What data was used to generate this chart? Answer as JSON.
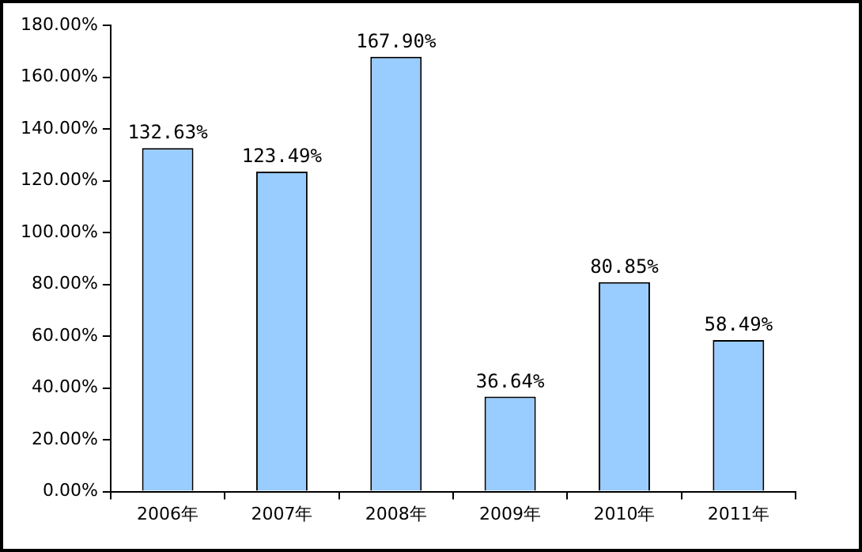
{
  "chart_data": {
    "type": "bar",
    "categories": [
      "2006年",
      "2007年",
      "2008年",
      "2009年",
      "2010年",
      "2011年"
    ],
    "values": [
      132.63,
      123.49,
      167.9,
      36.64,
      80.85,
      58.49
    ],
    "value_labels": [
      "132.63%",
      "123.49%",
      "167.90%",
      "36.64%",
      "80.85%",
      "58.49%"
    ],
    "color": "#99ccff",
    "ylim": [
      0,
      180
    ],
    "yticks": [
      {
        "value": 0,
        "label": "0.00%"
      },
      {
        "value": 20,
        "label": "20.00%"
      },
      {
        "value": 40,
        "label": "40.00%"
      },
      {
        "value": 60,
        "label": "60.00%"
      },
      {
        "value": 80,
        "label": "80.00%"
      },
      {
        "value": 100,
        "label": "100.00%"
      },
      {
        "value": 120,
        "label": "120.00%"
      },
      {
        "value": 140,
        "label": "140.00%"
      },
      {
        "value": 160,
        "label": "160.00%"
      },
      {
        "value": 180,
        "label": "180.00%"
      }
    ],
    "grid": false,
    "legend": false
  }
}
